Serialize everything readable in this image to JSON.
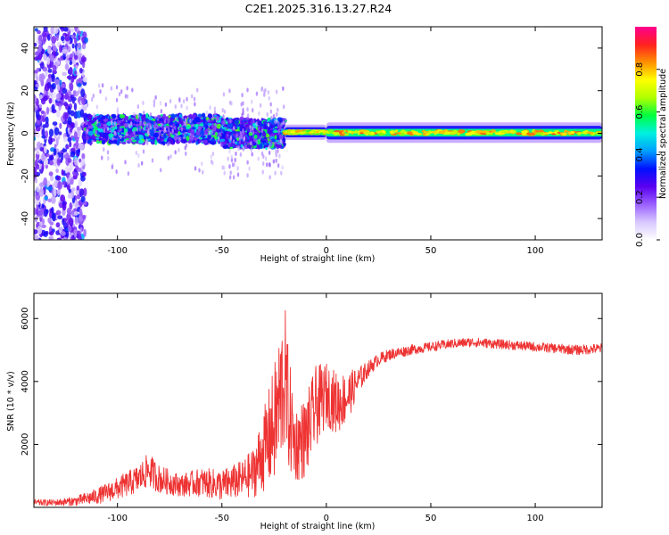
{
  "title": "C2E1.2025.316.13.27.R24",
  "chart_data": [
    {
      "type": "heatmap",
      "title": "C2E1.2025.316.13.27.R24",
      "xlabel": "Height of straight line (km)",
      "ylabel": "Frequency (Hz)",
      "xlim": [
        -140,
        132
      ],
      "ylim": [
        -50,
        50
      ],
      "xticks": [
        -100,
        -50,
        0,
        50,
        100
      ],
      "yticks": [
        -40,
        -20,
        0,
        20,
        40
      ],
      "colorbar": {
        "label": "Normalized spectral amplitude",
        "range": [
          0,
          1
        ],
        "ticks": [
          0.0,
          0.2,
          0.4,
          0.6,
          0.8
        ],
        "tick_labels": [
          "0.0",
          "0.2",
          "0.4",
          "0.6",
          "0.8"
        ],
        "colors": [
          "#ffffff",
          "#d8c8ff",
          "#9a60ff",
          "#5a00f0",
          "#0010ff",
          "#00a0ff",
          "#00f0e0",
          "#00ff40",
          "#b0ff00",
          "#ffff00",
          "#ff9000",
          "#ff2020",
          "#ff0090"
        ]
      },
      "bands": [
        {
          "x_start": -140,
          "x_end": -115,
          "center": 0,
          "halfwidth": 50,
          "intensity": 0.28,
          "pattern": "scattered"
        },
        {
          "x_start": -115,
          "x_end": -50,
          "center": 2,
          "halfwidth": 6,
          "intensity": 0.45,
          "pattern": "speckled"
        },
        {
          "x_start": -50,
          "x_end": -20,
          "center": 0,
          "halfwidth": 6,
          "intensity": 0.45,
          "pattern": "speckled"
        },
        {
          "x_start": -20,
          "x_end": 0,
          "center": 0.5,
          "halfwidth": 1.5,
          "intensity": 0.8,
          "pattern": "narrow"
        },
        {
          "x_start": 0,
          "x_end": 132,
          "center": 0.3,
          "halfwidth": 2,
          "intensity": 0.85,
          "pattern": "narrow"
        }
      ]
    },
    {
      "type": "line",
      "xlabel": "Height of straight line (km)",
      "ylabel": "SNR (10 * v/v)",
      "xlim": [
        -140,
        132
      ],
      "ylim": [
        0,
        6800
      ],
      "xticks": [
        -100,
        -50,
        0,
        50,
        100
      ],
      "yticks": [
        2000,
        4000,
        6000
      ],
      "color": "#ee3333",
      "series": [
        {
          "name": "SNR",
          "x": [
            -140,
            -130,
            -120,
            -110,
            -100,
            -90,
            -85,
            -80,
            -70,
            -60,
            -50,
            -40,
            -35,
            -30,
            -25,
            -22,
            -20,
            -18,
            -15,
            -10,
            -5,
            0,
            5,
            10,
            15,
            20,
            25,
            30,
            40,
            50,
            60,
            70,
            80,
            90,
            100,
            110,
            120,
            132
          ],
          "y": [
            150,
            150,
            200,
            350,
            600,
            900,
            1200,
            900,
            700,
            800,
            700,
            900,
            1100,
            1800,
            2600,
            3500,
            4200,
            3000,
            2000,
            2200,
            3200,
            3600,
            3300,
            3500,
            4000,
            4400,
            4700,
            4850,
            5000,
            5100,
            5200,
            5250,
            5200,
            5150,
            5100,
            5050,
            5000,
            5050
          ],
          "noise": [
            100,
            100,
            150,
            250,
            350,
            450,
            550,
            450,
            350,
            450,
            500,
            600,
            800,
            1300,
            1900,
            2300,
            2400,
            1900,
            1200,
            1300,
            1300,
            1000,
            1000,
            800,
            450,
            250,
            200,
            180,
            160,
            150,
            150,
            150,
            150,
            150,
            150,
            150,
            160,
            160
          ]
        }
      ]
    }
  ]
}
